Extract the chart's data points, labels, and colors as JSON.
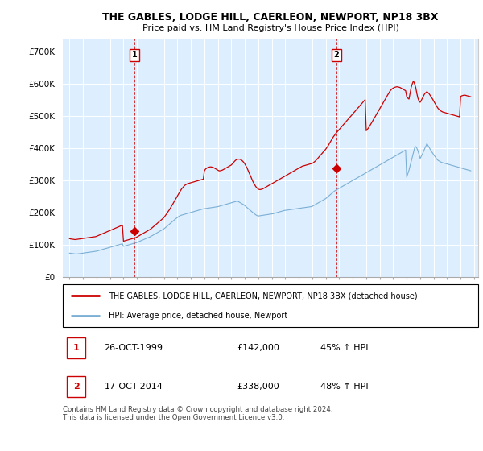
{
  "title": "THE GABLES, LODGE HILL, CAERLEON, NEWPORT, NP18 3BX",
  "subtitle": "Price paid vs. HM Land Registry's House Price Index (HPI)",
  "ylabel_ticks": [
    "£0",
    "£100K",
    "£200K",
    "£300K",
    "£400K",
    "£500K",
    "£600K",
    "£700K"
  ],
  "ytick_vals": [
    0,
    100000,
    200000,
    300000,
    400000,
    500000,
    600000,
    700000
  ],
  "ylim": [
    0,
    740000
  ],
  "xlim_start": 1994.5,
  "xlim_end": 2025.3,
  "house_color": "#cc0000",
  "hpi_color": "#7bafd4",
  "plot_bg_color": "#ddeeff",
  "background_color": "#ffffff",
  "grid_color": "#ffffff",
  "sale1_x": 1999.82,
  "sale1_y": 142000,
  "sale1_label": "1",
  "sale2_x": 2014.8,
  "sale2_y": 338000,
  "sale2_label": "2",
  "legend_house": "THE GABLES, LODGE HILL, CAERLEON, NEWPORT, NP18 3BX (detached house)",
  "legend_hpi": "HPI: Average price, detached house, Newport",
  "footnote": "Contains HM Land Registry data © Crown copyright and database right 2024.\nThis data is licensed under the Open Government Licence v3.0.",
  "hpi_data_x": [
    1995.0,
    1995.08,
    1995.17,
    1995.25,
    1995.33,
    1995.42,
    1995.5,
    1995.58,
    1995.67,
    1995.75,
    1995.83,
    1995.92,
    1996.0,
    1996.08,
    1996.17,
    1996.25,
    1996.33,
    1996.42,
    1996.5,
    1996.58,
    1996.67,
    1996.75,
    1996.83,
    1996.92,
    1997.0,
    1997.08,
    1997.17,
    1997.25,
    1997.33,
    1997.42,
    1997.5,
    1997.58,
    1997.67,
    1997.75,
    1997.83,
    1997.92,
    1998.0,
    1998.08,
    1998.17,
    1998.25,
    1998.33,
    1998.42,
    1998.5,
    1998.58,
    1998.67,
    1998.75,
    1998.83,
    1998.92,
    1999.0,
    1999.08,
    1999.17,
    1999.25,
    1999.33,
    1999.42,
    1999.5,
    1999.58,
    1999.67,
    1999.75,
    1999.83,
    1999.92,
    2000.0,
    2000.08,
    2000.17,
    2000.25,
    2000.33,
    2000.42,
    2000.5,
    2000.58,
    2000.67,
    2000.75,
    2000.83,
    2000.92,
    2001.0,
    2001.08,
    2001.17,
    2001.25,
    2001.33,
    2001.42,
    2001.5,
    2001.58,
    2001.67,
    2001.75,
    2001.83,
    2001.92,
    2002.0,
    2002.08,
    2002.17,
    2002.25,
    2002.33,
    2002.42,
    2002.5,
    2002.58,
    2002.67,
    2002.75,
    2002.83,
    2002.92,
    2003.0,
    2003.08,
    2003.17,
    2003.25,
    2003.33,
    2003.42,
    2003.5,
    2003.58,
    2003.67,
    2003.75,
    2003.83,
    2003.92,
    2004.0,
    2004.08,
    2004.17,
    2004.25,
    2004.33,
    2004.42,
    2004.5,
    2004.58,
    2004.67,
    2004.75,
    2004.83,
    2004.92,
    2005.0,
    2005.08,
    2005.17,
    2005.25,
    2005.33,
    2005.42,
    2005.5,
    2005.58,
    2005.67,
    2005.75,
    2005.83,
    2005.92,
    2006.0,
    2006.08,
    2006.17,
    2006.25,
    2006.33,
    2006.42,
    2006.5,
    2006.58,
    2006.67,
    2006.75,
    2006.83,
    2006.92,
    2007.0,
    2007.08,
    2007.17,
    2007.25,
    2007.33,
    2007.42,
    2007.5,
    2007.58,
    2007.67,
    2007.75,
    2007.83,
    2007.92,
    2008.0,
    2008.08,
    2008.17,
    2008.25,
    2008.33,
    2008.42,
    2008.5,
    2008.58,
    2008.67,
    2008.75,
    2008.83,
    2008.92,
    2009.0,
    2009.08,
    2009.17,
    2009.25,
    2009.33,
    2009.42,
    2009.5,
    2009.58,
    2009.67,
    2009.75,
    2009.83,
    2009.92,
    2010.0,
    2010.08,
    2010.17,
    2010.25,
    2010.33,
    2010.42,
    2010.5,
    2010.58,
    2010.67,
    2010.75,
    2010.83,
    2010.92,
    2011.0,
    2011.08,
    2011.17,
    2011.25,
    2011.33,
    2011.42,
    2011.5,
    2011.58,
    2011.67,
    2011.75,
    2011.83,
    2011.92,
    2012.0,
    2012.08,
    2012.17,
    2012.25,
    2012.33,
    2012.42,
    2012.5,
    2012.58,
    2012.67,
    2012.75,
    2012.83,
    2012.92,
    2013.0,
    2013.08,
    2013.17,
    2013.25,
    2013.33,
    2013.42,
    2013.5,
    2013.58,
    2013.67,
    2013.75,
    2013.83,
    2013.92,
    2014.0,
    2014.08,
    2014.17,
    2014.25,
    2014.33,
    2014.42,
    2014.5,
    2014.58,
    2014.67,
    2014.75,
    2014.83,
    2014.92,
    2015.0,
    2015.08,
    2015.17,
    2015.25,
    2015.33,
    2015.42,
    2015.5,
    2015.58,
    2015.67,
    2015.75,
    2015.83,
    2015.92,
    2016.0,
    2016.08,
    2016.17,
    2016.25,
    2016.33,
    2016.42,
    2016.5,
    2016.58,
    2016.67,
    2016.75,
    2016.83,
    2016.92,
    2017.0,
    2017.08,
    2017.17,
    2017.25,
    2017.33,
    2017.42,
    2017.5,
    2017.58,
    2017.67,
    2017.75,
    2017.83,
    2017.92,
    2018.0,
    2018.08,
    2018.17,
    2018.25,
    2018.33,
    2018.42,
    2018.5,
    2018.58,
    2018.67,
    2018.75,
    2018.83,
    2018.92,
    2019.0,
    2019.08,
    2019.17,
    2019.25,
    2019.33,
    2019.42,
    2019.5,
    2019.58,
    2019.67,
    2019.75,
    2019.83,
    2019.92,
    2020.0,
    2020.08,
    2020.17,
    2020.25,
    2020.33,
    2020.42,
    2020.5,
    2020.58,
    2020.67,
    2020.75,
    2020.83,
    2020.92,
    2021.0,
    2021.08,
    2021.17,
    2021.25,
    2021.33,
    2021.42,
    2021.5,
    2021.58,
    2021.67,
    2021.75,
    2021.83,
    2021.92,
    2022.0,
    2022.08,
    2022.17,
    2022.25,
    2022.33,
    2022.42,
    2022.5,
    2022.58,
    2022.67,
    2022.75,
    2022.83,
    2022.92,
    2023.0,
    2023.08,
    2023.17,
    2023.25,
    2023.33,
    2023.42,
    2023.5,
    2023.58,
    2023.67,
    2023.75,
    2023.83,
    2023.92,
    2024.0,
    2024.08,
    2024.17,
    2024.25,
    2024.33,
    2024.42,
    2024.5,
    2024.58,
    2024.67,
    2024.75
  ],
  "hpi_data_y": [
    75000,
    74500,
    74000,
    73500,
    73000,
    72500,
    72000,
    72500,
    73000,
    73500,
    74000,
    74500,
    75000,
    75500,
    76000,
    76500,
    77000,
    77500,
    78000,
    78500,
    79000,
    79500,
    80000,
    80500,
    81000,
    82000,
    83000,
    84000,
    85000,
    86000,
    87000,
    88000,
    89000,
    90000,
    91000,
    92000,
    93000,
    94000,
    95000,
    96000,
    97000,
    98000,
    99000,
    100000,
    101000,
    102000,
    103000,
    104000,
    96000,
    97000,
    98000,
    99000,
    100000,
    101000,
    102000,
    103000,
    104000,
    105000,
    106000,
    107000,
    108000,
    109500,
    111000,
    112500,
    114000,
    115500,
    117000,
    118500,
    120000,
    121500,
    123000,
    124500,
    126000,
    128000,
    130000,
    132000,
    134000,
    136000,
    138000,
    140000,
    142000,
    144000,
    146000,
    148000,
    150000,
    153000,
    156000,
    159000,
    162000,
    165000,
    168000,
    171000,
    174000,
    177000,
    180000,
    183000,
    186000,
    188000,
    190000,
    192000,
    193000,
    194000,
    195000,
    196000,
    197000,
    198000,
    199000,
    200000,
    201000,
    202000,
    203000,
    204000,
    205000,
    206000,
    207000,
    208000,
    209000,
    210000,
    211000,
    212000,
    212500,
    213000,
    213500,
    214000,
    214500,
    215000,
    215500,
    216000,
    216500,
    217000,
    217500,
    218000,
    219000,
    220000,
    221000,
    222000,
    223000,
    224000,
    225000,
    226000,
    227000,
    228000,
    229000,
    230000,
    231000,
    232000,
    233000,
    234000,
    235000,
    236000,
    235000,
    233000,
    231000,
    229000,
    227000,
    225000,
    222000,
    219000,
    216000,
    213000,
    210000,
    207000,
    204000,
    201000,
    198000,
    195000,
    193000,
    191000,
    190000,
    190500,
    191000,
    191500,
    192000,
    192500,
    193000,
    193500,
    194000,
    194500,
    195000,
    195500,
    196000,
    197000,
    198000,
    199000,
    200000,
    201000,
    202000,
    203000,
    204000,
    205000,
    206000,
    207000,
    207500,
    208000,
    208500,
    209000,
    209500,
    210000,
    210500,
    211000,
    211500,
    212000,
    212500,
    213000,
    213500,
    214000,
    214500,
    215000,
    215500,
    216000,
    216500,
    217000,
    217500,
    218000,
    218500,
    219000,
    220000,
    222000,
    224000,
    226000,
    228000,
    230000,
    232000,
    234000,
    236000,
    238000,
    240000,
    242000,
    244000,
    247000,
    250000,
    253000,
    256000,
    259000,
    262000,
    265000,
    268000,
    270000,
    272000,
    274000,
    276000,
    278000,
    280000,
    282000,
    284000,
    286000,
    288000,
    290000,
    292000,
    294000,
    296000,
    298000,
    300000,
    302000,
    304000,
    306000,
    308000,
    310000,
    312000,
    314000,
    316000,
    318000,
    320000,
    322000,
    324000,
    326000,
    328000,
    330000,
    332000,
    334000,
    336000,
    338000,
    340000,
    342000,
    344000,
    346000,
    348000,
    350000,
    352000,
    354000,
    356000,
    358000,
    360000,
    362000,
    364000,
    366000,
    368000,
    370000,
    372000,
    374000,
    376000,
    378000,
    380000,
    382000,
    384000,
    386000,
    388000,
    390000,
    392000,
    394000,
    310000,
    320000,
    332000,
    345000,
    358000,
    372000,
    386000,
    400000,
    405000,
    400000,
    392000,
    380000,
    368000,
    375000,
    382000,
    390000,
    398000,
    406000,
    414000,
    408000,
    402000,
    396000,
    390000,
    385000,
    380000,
    375000,
    370000,
    365000,
    362000,
    360000,
    358000,
    356000,
    355000,
    354000,
    353000,
    352000,
    351000,
    350000,
    349000,
    348000,
    347000,
    346000,
    345000,
    344000,
    343000,
    342000,
    341000,
    340000,
    339000,
    338000,
    337000,
    336000,
    335000,
    334000,
    333000,
    332000,
    331000,
    330000
  ],
  "house_data_x": [
    1995.0,
    1995.08,
    1995.17,
    1995.25,
    1995.33,
    1995.42,
    1995.5,
    1995.58,
    1995.67,
    1995.75,
    1995.83,
    1995.92,
    1996.0,
    1996.08,
    1996.17,
    1996.25,
    1996.33,
    1996.42,
    1996.5,
    1996.58,
    1996.67,
    1996.75,
    1996.83,
    1996.92,
    1997.0,
    1997.08,
    1997.17,
    1997.25,
    1997.33,
    1997.42,
    1997.5,
    1997.58,
    1997.67,
    1997.75,
    1997.83,
    1997.92,
    1998.0,
    1998.08,
    1998.17,
    1998.25,
    1998.33,
    1998.42,
    1998.5,
    1998.58,
    1998.67,
    1998.75,
    1998.83,
    1998.92,
    1999.0,
    1999.08,
    1999.17,
    1999.25,
    1999.33,
    1999.42,
    1999.5,
    1999.58,
    1999.67,
    1999.75,
    1999.83,
    1999.92,
    2000.0,
    2000.08,
    2000.17,
    2000.25,
    2000.33,
    2000.42,
    2000.5,
    2000.58,
    2000.67,
    2000.75,
    2000.83,
    2000.92,
    2001.0,
    2001.08,
    2001.17,
    2001.25,
    2001.33,
    2001.42,
    2001.5,
    2001.58,
    2001.67,
    2001.75,
    2001.83,
    2001.92,
    2002.0,
    2002.08,
    2002.17,
    2002.25,
    2002.33,
    2002.42,
    2002.5,
    2002.58,
    2002.67,
    2002.75,
    2002.83,
    2002.92,
    2003.0,
    2003.08,
    2003.17,
    2003.25,
    2003.33,
    2003.42,
    2003.5,
    2003.58,
    2003.67,
    2003.75,
    2003.83,
    2003.92,
    2004.0,
    2004.08,
    2004.17,
    2004.25,
    2004.33,
    2004.42,
    2004.5,
    2004.58,
    2004.67,
    2004.75,
    2004.83,
    2004.92,
    2005.0,
    2005.08,
    2005.17,
    2005.25,
    2005.33,
    2005.42,
    2005.5,
    2005.58,
    2005.67,
    2005.75,
    2005.83,
    2005.92,
    2006.0,
    2006.08,
    2006.17,
    2006.25,
    2006.33,
    2006.42,
    2006.5,
    2006.58,
    2006.67,
    2006.75,
    2006.83,
    2006.92,
    2007.0,
    2007.08,
    2007.17,
    2007.25,
    2007.33,
    2007.42,
    2007.5,
    2007.58,
    2007.67,
    2007.75,
    2007.83,
    2007.92,
    2008.0,
    2008.08,
    2008.17,
    2008.25,
    2008.33,
    2008.42,
    2008.5,
    2008.58,
    2008.67,
    2008.75,
    2008.83,
    2008.92,
    2009.0,
    2009.08,
    2009.17,
    2009.25,
    2009.33,
    2009.42,
    2009.5,
    2009.58,
    2009.67,
    2009.75,
    2009.83,
    2009.92,
    2010.0,
    2010.08,
    2010.17,
    2010.25,
    2010.33,
    2010.42,
    2010.5,
    2010.58,
    2010.67,
    2010.75,
    2010.83,
    2010.92,
    2011.0,
    2011.08,
    2011.17,
    2011.25,
    2011.33,
    2011.42,
    2011.5,
    2011.58,
    2011.67,
    2011.75,
    2011.83,
    2011.92,
    2012.0,
    2012.08,
    2012.17,
    2012.25,
    2012.33,
    2012.42,
    2012.5,
    2012.58,
    2012.67,
    2012.75,
    2012.83,
    2012.92,
    2013.0,
    2013.08,
    2013.17,
    2013.25,
    2013.33,
    2013.42,
    2013.5,
    2013.58,
    2013.67,
    2013.75,
    2013.83,
    2013.92,
    2014.0,
    2014.08,
    2014.17,
    2014.25,
    2014.33,
    2014.42,
    2014.5,
    2014.58,
    2014.67,
    2014.75,
    2014.83,
    2014.92,
    2015.0,
    2015.08,
    2015.17,
    2015.25,
    2015.33,
    2015.42,
    2015.5,
    2015.58,
    2015.67,
    2015.75,
    2015.83,
    2015.92,
    2016.0,
    2016.08,
    2016.17,
    2016.25,
    2016.33,
    2016.42,
    2016.5,
    2016.58,
    2016.67,
    2016.75,
    2016.83,
    2016.92,
    2017.0,
    2017.08,
    2017.17,
    2017.25,
    2017.33,
    2017.42,
    2017.5,
    2017.58,
    2017.67,
    2017.75,
    2017.83,
    2017.92,
    2018.0,
    2018.08,
    2018.17,
    2018.25,
    2018.33,
    2018.42,
    2018.5,
    2018.58,
    2018.67,
    2018.75,
    2018.83,
    2018.92,
    2019.0,
    2019.08,
    2019.17,
    2019.25,
    2019.33,
    2019.42,
    2019.5,
    2019.58,
    2019.67,
    2019.75,
    2019.83,
    2019.92,
    2020.0,
    2020.08,
    2020.17,
    2020.25,
    2020.33,
    2020.42,
    2020.5,
    2020.58,
    2020.67,
    2020.75,
    2020.83,
    2020.92,
    2021.0,
    2021.08,
    2021.17,
    2021.25,
    2021.33,
    2021.42,
    2021.5,
    2021.58,
    2021.67,
    2021.75,
    2021.83,
    2021.92,
    2022.0,
    2022.08,
    2022.17,
    2022.25,
    2022.33,
    2022.42,
    2022.5,
    2022.58,
    2022.67,
    2022.75,
    2022.83,
    2022.92,
    2023.0,
    2023.08,
    2023.17,
    2023.25,
    2023.33,
    2023.42,
    2023.5,
    2023.58,
    2023.67,
    2023.75,
    2023.83,
    2023.92,
    2024.0,
    2024.08,
    2024.17,
    2024.25,
    2024.33,
    2024.42,
    2024.5,
    2024.58,
    2024.67,
    2024.75
  ],
  "house_data_y": [
    120000,
    119000,
    118500,
    118000,
    117500,
    117000,
    117500,
    118000,
    118500,
    119000,
    119500,
    120000,
    120500,
    121000,
    121500,
    122000,
    122500,
    123000,
    123500,
    124000,
    124500,
    125000,
    125500,
    126000,
    127000,
    128500,
    130000,
    131500,
    133000,
    134500,
    136000,
    137500,
    139000,
    140500,
    142000,
    143500,
    145000,
    146500,
    148000,
    149500,
    151000,
    152500,
    154000,
    155500,
    157000,
    158500,
    160000,
    161500,
    112000,
    113000,
    114000,
    115000,
    116000,
    117000,
    118000,
    119000,
    120000,
    121000,
    122000,
    123000,
    125000,
    127000,
    129000,
    131000,
    133000,
    135000,
    137000,
    139000,
    141000,
    143000,
    145000,
    147000,
    149000,
    152000,
    155000,
    158000,
    161000,
    164000,
    167000,
    170000,
    173000,
    176000,
    179000,
    182000,
    185000,
    190000,
    195000,
    200000,
    205000,
    210000,
    216000,
    222000,
    228000,
    234000,
    240000,
    246000,
    252000,
    258000,
    264000,
    270000,
    275000,
    279000,
    283000,
    286000,
    288000,
    290000,
    291000,
    292000,
    293000,
    294000,
    295000,
    296000,
    297000,
    298000,
    299000,
    300000,
    301000,
    302000,
    303000,
    304000,
    330000,
    335000,
    338000,
    340000,
    341000,
    342000,
    342000,
    341000,
    340000,
    338000,
    336000,
    334000,
    332000,
    330000,
    330000,
    331000,
    332000,
    334000,
    336000,
    338000,
    340000,
    342000,
    344000,
    346000,
    348000,
    352000,
    356000,
    360000,
    363000,
    365000,
    366000,
    366000,
    365000,
    363000,
    360000,
    356000,
    351000,
    345000,
    338000,
    330000,
    322000,
    314000,
    306000,
    298000,
    291000,
    285000,
    280000,
    276000,
    273000,
    272000,
    272000,
    273000,
    274000,
    276000,
    278000,
    280000,
    282000,
    284000,
    286000,
    288000,
    290000,
    292000,
    294000,
    296000,
    298000,
    300000,
    302000,
    304000,
    306000,
    308000,
    310000,
    312000,
    314000,
    316000,
    318000,
    320000,
    322000,
    324000,
    326000,
    328000,
    330000,
    332000,
    334000,
    336000,
    338000,
    340000,
    342000,
    344000,
    345000,
    346000,
    347000,
    348000,
    349000,
    350000,
    351000,
    352000,
    353000,
    355000,
    358000,
    361000,
    365000,
    369000,
    373000,
    377000,
    381000,
    385000,
    389000,
    393000,
    397000,
    402000,
    407000,
    413000,
    419000,
    425000,
    431000,
    436000,
    441000,
    446000,
    450000,
    454000,
    458000,
    462000,
    466000,
    470000,
    474000,
    478000,
    482000,
    486000,
    490000,
    494000,
    498000,
    502000,
    506000,
    510000,
    514000,
    518000,
    522000,
    526000,
    530000,
    534000,
    538000,
    542000,
    546000,
    550000,
    454000,
    458000,
    463000,
    468000,
    474000,
    480000,
    486000,
    492000,
    498000,
    504000,
    510000,
    516000,
    522000,
    528000,
    534000,
    540000,
    546000,
    552000,
    558000,
    564000,
    570000,
    576000,
    580000,
    584000,
    586000,
    588000,
    589000,
    590000,
    590000,
    589000,
    588000,
    586000,
    584000,
    582000,
    580000,
    578000,
    560000,
    555000,
    552000,
    570000,
    588000,
    600000,
    608000,
    600000,
    588000,
    570000,
    555000,
    545000,
    542000,
    548000,
    555000,
    562000,
    568000,
    572000,
    575000,
    572000,
    568000,
    563000,
    558000,
    552000,
    546000,
    540000,
    534000,
    528000,
    523000,
    519000,
    516000,
    514000,
    512000,
    511000,
    510000,
    509000,
    508000,
    507000,
    506000,
    505000,
    504000,
    503000,
    502000,
    501000,
    500000,
    499000,
    498000,
    497000,
    560000,
    562000,
    563000,
    564000,
    564000,
    563000,
    562000,
    561000,
    560000,
    559000
  ]
}
